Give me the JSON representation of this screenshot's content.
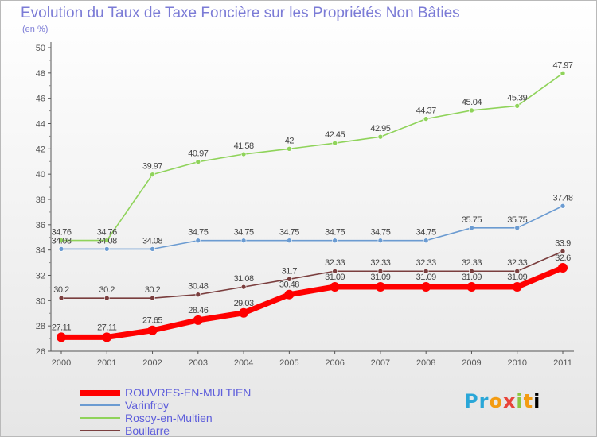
{
  "chart_data": {
    "type": "line",
    "title": "Evolution du Taux de Taxe Foncière sur les Propriétés Non Bâties",
    "subtitle": "(en %)",
    "x": [
      "2000",
      "2001",
      "2002",
      "2003",
      "2004",
      "2005",
      "2006",
      "2007",
      "2008",
      "2009",
      "2010",
      "2011"
    ],
    "ylim": [
      26,
      50
    ],
    "yticks": [
      26,
      28,
      30,
      32,
      34,
      36,
      38,
      40,
      42,
      44,
      46,
      48,
      50
    ],
    "grid": false,
    "legend_position": "bottom-left",
    "series": [
      {
        "name": "ROUVRES-EN-MULTIEN",
        "color": "#ff0000",
        "values": [
          27.11,
          27.11,
          27.65,
          28.46,
          29.03,
          30.48,
          31.09,
          31.09,
          31.09,
          31.09,
          31.09,
          32.6
        ],
        "labels": [
          "27.11",
          "27.11",
          "27.65",
          "28.46",
          "29.03",
          "30.48",
          "31.09",
          "31.09",
          "31.09",
          "31.09",
          "31.09",
          "32.6"
        ]
      },
      {
        "name": "Varinfroy",
        "color": "#6b9bd1",
        "values": [
          34.08,
          34.08,
          34.08,
          34.75,
          34.75,
          34.75,
          34.75,
          34.75,
          34.75,
          35.75,
          35.75,
          37.48
        ],
        "labels": [
          "34.08",
          "34.08",
          "34.08",
          "34.75",
          "34.75",
          "34.75",
          "34.75",
          "34.75",
          "34.75",
          "35.75",
          "35.75",
          "37.48"
        ]
      },
      {
        "name": "Rosoy-en-Multien",
        "color": "#8fd35a",
        "values": [
          34.76,
          34.76,
          39.97,
          40.97,
          41.58,
          42,
          42.45,
          42.95,
          44.37,
          45.04,
          45.39,
          47.97
        ],
        "labels": [
          "34.76",
          "34.76",
          "39.97",
          "40.97",
          "41.58",
          "42",
          "42.45",
          "42.95",
          "44.37",
          "45.04",
          "45.39",
          "47.97"
        ]
      },
      {
        "name": "Boullarre",
        "color": "#7a3e3e",
        "values": [
          30.2,
          30.2,
          30.2,
          30.48,
          31.08,
          31.7,
          32.33,
          32.33,
          32.33,
          32.33,
          32.33,
          33.9
        ],
        "labels": [
          "30.2",
          "30.2",
          "30.2",
          "30.48",
          "31.08",
          "31.7",
          "32.33",
          "32.33",
          "32.33",
          "32.33",
          "32.33",
          "33.9"
        ]
      }
    ]
  },
  "logo": {
    "letters": [
      "P",
      "r",
      "o",
      "x",
      "i",
      "t",
      "i"
    ]
  }
}
